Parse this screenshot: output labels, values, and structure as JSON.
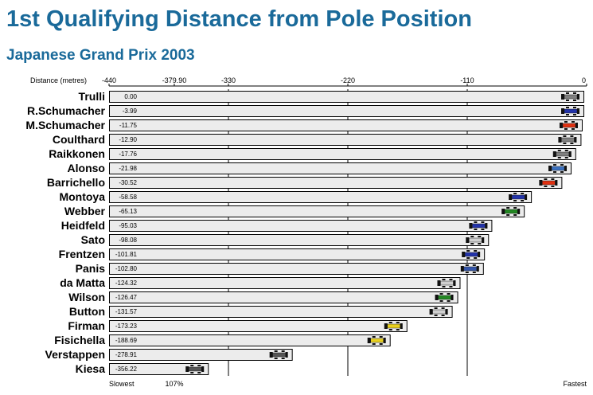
{
  "header": {
    "title": "1st Qualifying Distance from Pole Position",
    "subtitle": "Japanese Grand Prix 2003"
  },
  "chart_data": {
    "type": "bar",
    "orientation": "horizontal",
    "title": "1st Qualifying Distance from Pole Position",
    "subtitle": "Japanese Grand Prix 2003",
    "xlabel": "Distance (metres)",
    "xlim": [
      -440,
      0
    ],
    "x_ticks": [
      {
        "value": -440,
        "label": "-440"
      },
      {
        "value": -379.9,
        "label": "-379.90"
      },
      {
        "value": -330,
        "label": "-330"
      },
      {
        "value": -220,
        "label": "-220"
      },
      {
        "value": -110,
        "label": "-110"
      },
      {
        "value": 0,
        "label": "0"
      }
    ],
    "gridlines_at": [
      -330,
      -220,
      -110
    ],
    "bottom_labels": [
      {
        "value": -440,
        "label": "Slowest"
      },
      {
        "value": -379.9,
        "label": "107%"
      },
      {
        "value": 0,
        "label": "Fastest"
      }
    ],
    "bar_color": "#ececec",
    "categories": [
      "Trulli",
      "R.Schumacher",
      "M.Schumacher",
      "Coulthard",
      "Raikkonen",
      "Alonso",
      "Barrichello",
      "Montoya",
      "Webber",
      "Heidfeld",
      "Sato",
      "Frentzen",
      "Panis",
      "da Matta",
      "Wilson",
      "Button",
      "Firman",
      "Fisichella",
      "Verstappen",
      "Kiesa"
    ],
    "values": [
      0.0,
      -3.99,
      -11.75,
      -12.9,
      -17.76,
      -21.98,
      -30.52,
      -58.58,
      -65.13,
      -95.03,
      -98.08,
      -101.81,
      -102.8,
      -124.32,
      -126.47,
      -131.57,
      -173.23,
      -188.69,
      -278.91,
      -356.22
    ],
    "value_labels": [
      "0.00",
      "-3.99",
      "-11.75",
      "-12.90",
      "-17.76",
      "-21.98",
      "-30.52",
      "-58.58",
      "-65.13",
      "-95.03",
      "-98.08",
      "-101.81",
      "-102.80",
      "-124.32",
      "-126.47",
      "-131.57",
      "-173.23",
      "-188.69",
      "-278.91",
      "-356.22"
    ],
    "car_colors": [
      "#808080",
      "#2233aa",
      "#e03010",
      "#808080",
      "#808080",
      "#3a70c0",
      "#e03010",
      "#2233aa",
      "#228822",
      "#2233aa",
      "#d0d0d0",
      "#2233aa",
      "#3355aa",
      "#d0d0d0",
      "#228822",
      "#d0d0d0",
      "#e8d020",
      "#e8d020",
      "#555555",
      "#555555"
    ]
  }
}
